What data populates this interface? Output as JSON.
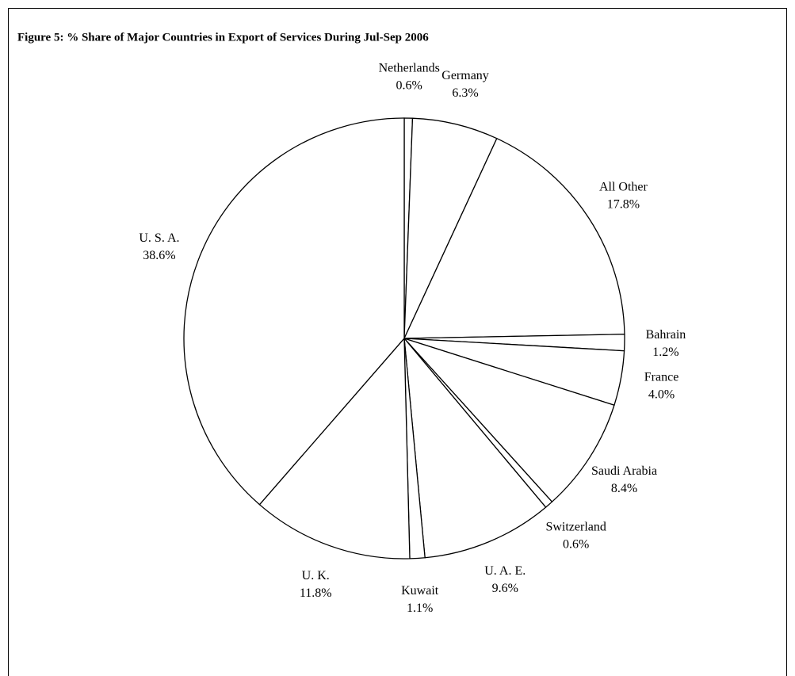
{
  "chart_data": {
    "type": "pie",
    "title": "Figure 5: % Share of Major Countries in Export of Services During  Jul-Sep 2006",
    "categories": [
      "Netherlands",
      "Germany",
      "All Other",
      "Bahrain",
      "France",
      "Saudi Arabia",
      "Switzerland",
      "U. A. E.",
      "Kuwait",
      "U. K.",
      "U. S. A."
    ],
    "values": [
      0.6,
      6.3,
      17.8,
      1.2,
      4.0,
      8.4,
      0.6,
      9.6,
      1.1,
      11.8,
      38.6
    ],
    "value_labels": [
      "0.6%",
      "6.3%",
      "17.8%",
      "1.2%",
      "4.0%",
      "8.4%",
      "0.6%",
      "9.6%",
      "1.1%",
      "11.8%",
      "38.6%"
    ],
    "color": "#ffffff"
  }
}
